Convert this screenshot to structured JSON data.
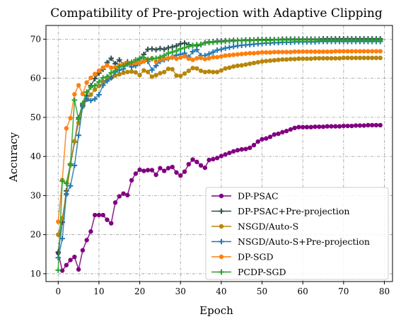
{
  "chart_data": {
    "type": "line",
    "title": "Compatibility of Pre-projection with Adaptive Clipping",
    "xlabel": "Epoch",
    "ylabel": "Accuracy",
    "xlim": [
      -3,
      82
    ],
    "ylim": [
      8,
      73.5
    ],
    "xticks": [
      0,
      10,
      20,
      30,
      40,
      50,
      60,
      70,
      80
    ],
    "yticks": [
      10,
      20,
      30,
      40,
      50,
      60,
      70
    ],
    "grid": true,
    "legend_position": "lower-right",
    "series": [
      {
        "name": "DP-PSAC",
        "color": "#800080",
        "marker": "circle",
        "x": [
          0,
          1,
          2,
          3,
          4,
          5,
          6,
          7,
          8,
          9,
          10,
          11,
          12,
          13,
          14,
          15,
          16,
          17,
          18,
          19,
          20,
          21,
          22,
          23,
          24,
          25,
          26,
          27,
          28,
          29,
          30,
          31,
          32,
          33,
          34,
          35,
          36,
          37,
          38,
          39,
          40,
          41,
          42,
          43,
          44,
          45,
          46,
          47,
          48,
          49,
          50,
          51,
          52,
          53,
          54,
          55,
          56,
          57,
          58,
          59,
          60,
          61,
          62,
          63,
          64,
          65,
          66,
          67,
          68,
          69,
          70,
          71,
          72,
          73,
          74,
          75,
          76,
          77,
          78,
          79
        ],
        "y": [
          15.3,
          10.8,
          12.2,
          13.5,
          14.3,
          11.1,
          16.0,
          18.6,
          20.8,
          25.0,
          25.0,
          25.0,
          23.8,
          22.9,
          28.2,
          29.8,
          30.5,
          30.1,
          33.9,
          35.6,
          36.6,
          36.3,
          36.5,
          36.5,
          35.3,
          37.0,
          36.3,
          37.0,
          37.3,
          35.9,
          35.1,
          36.1,
          38.0,
          39.2,
          38.6,
          37.7,
          37.1,
          39.1,
          39.3,
          39.6,
          40.1,
          40.5,
          40.9,
          41.3,
          41.6,
          41.8,
          41.9,
          42.2,
          42.9,
          43.8,
          44.4,
          44.6,
          45.0,
          45.6,
          45.8,
          46.2,
          46.5,
          46.9,
          47.3,
          47.5,
          47.5,
          47.5,
          47.5,
          47.6,
          47.6,
          47.6,
          47.7,
          47.7,
          47.7,
          47.7,
          47.8,
          47.8,
          47.8,
          47.9,
          47.9,
          47.9,
          48.0,
          48.0,
          48.0,
          48.0
        ]
      },
      {
        "name": "DP-PSAC+Pre-projection",
        "color": "#2f4f4f",
        "marker": "plus",
        "x": [
          0,
          1,
          2,
          3,
          4,
          5,
          6,
          7,
          8,
          9,
          10,
          11,
          12,
          13,
          14,
          15,
          16,
          17,
          18,
          19,
          20,
          21,
          22,
          23,
          24,
          25,
          26,
          27,
          28,
          29,
          30,
          31,
          32,
          33,
          34,
          35,
          36,
          37,
          38,
          39,
          40,
          41,
          42,
          43,
          44,
          45,
          46,
          47,
          48,
          49,
          50,
          51,
          52,
          53,
          54,
          55,
          56,
          57,
          58,
          59,
          60,
          61,
          62,
          63,
          64,
          65,
          66,
          67,
          68,
          69,
          70,
          71,
          72,
          73,
          74,
          75,
          76,
          77,
          78,
          79
        ],
        "y": [
          15.5,
          23.2,
          31.2,
          37.8,
          43.7,
          49.9,
          53.2,
          55.5,
          58.1,
          59.9,
          61.3,
          62.3,
          64.0,
          65.1,
          63.7,
          64.7,
          63.5,
          64.2,
          63.6,
          64.0,
          65.0,
          66.1,
          67.4,
          67.5,
          67.3,
          67.6,
          67.4,
          67.8,
          68.0,
          68.3,
          68.8,
          69.0,
          68.6,
          68.4,
          68.3,
          68.6,
          69.1,
          69.3,
          69.3,
          69.5,
          69.5,
          69.6,
          69.6,
          69.7,
          69.7,
          69.7,
          69.8,
          69.8,
          69.8,
          69.9,
          69.9,
          69.9,
          69.9,
          69.9,
          69.9,
          70.0,
          70.0,
          70.0,
          70.0,
          70.0,
          70.0,
          70.0,
          70.0,
          70.0,
          70.0,
          70.1,
          70.1,
          70.1,
          70.1,
          70.1,
          70.1,
          70.1,
          70.1,
          70.1,
          70.1,
          70.1,
          70.1,
          70.1,
          70.1,
          70.1
        ]
      },
      {
        "name": "NSGD/Auto-S",
        "color": "#b8860b",
        "marker": "circle",
        "x": [
          0,
          1,
          2,
          3,
          4,
          5,
          6,
          7,
          8,
          9,
          10,
          11,
          12,
          13,
          14,
          15,
          16,
          17,
          18,
          19,
          20,
          21,
          22,
          23,
          24,
          25,
          26,
          27,
          28,
          29,
          30,
          31,
          32,
          33,
          34,
          35,
          36,
          37,
          38,
          39,
          40,
          41,
          42,
          43,
          44,
          45,
          46,
          47,
          48,
          49,
          50,
          51,
          52,
          53,
          54,
          55,
          56,
          57,
          58,
          59,
          60,
          61,
          62,
          63,
          64,
          65,
          66,
          67,
          68,
          69,
          70,
          71,
          72,
          73,
          74,
          75,
          76,
          77,
          78,
          79
        ],
        "y": [
          20.0,
          24.2,
          30.3,
          37.9,
          43.9,
          48.6,
          52.7,
          54.5,
          55.8,
          57.1,
          58.0,
          59.1,
          59.6,
          60.1,
          60.7,
          61.0,
          61.4,
          61.6,
          61.7,
          61.5,
          60.8,
          62.0,
          61.6,
          60.4,
          60.8,
          61.3,
          61.6,
          62.4,
          62.3,
          60.7,
          60.6,
          61.2,
          61.9,
          62.6,
          62.5,
          61.9,
          61.6,
          61.7,
          61.6,
          61.6,
          62.0,
          62.5,
          62.7,
          63.0,
          63.2,
          63.3,
          63.5,
          63.7,
          63.9,
          64.1,
          64.3,
          64.4,
          64.5,
          64.6,
          64.7,
          64.8,
          64.8,
          64.9,
          64.9,
          65.0,
          65.0,
          65.0,
          65.0,
          65.1,
          65.1,
          65.1,
          65.1,
          65.1,
          65.1,
          65.1,
          65.2,
          65.2,
          65.2,
          65.2,
          65.2,
          65.2,
          65.2,
          65.2,
          65.2,
          65.2
        ]
      },
      {
        "name": "NSGD/Auto-S+Pre-projection",
        "color": "#1f77b4",
        "marker": "plus",
        "x": [
          0,
          1,
          2,
          3,
          4,
          5,
          6,
          7,
          8,
          9,
          10,
          11,
          12,
          13,
          14,
          15,
          16,
          17,
          18,
          19,
          20,
          21,
          22,
          23,
          24,
          25,
          26,
          27,
          28,
          29,
          30,
          31,
          32,
          33,
          34,
          35,
          36,
          37,
          38,
          39,
          40,
          41,
          42,
          43,
          44,
          45,
          46,
          47,
          48,
          49,
          50,
          51,
          52,
          53,
          54,
          55,
          56,
          57,
          58,
          59,
          60,
          61,
          62,
          63,
          64,
          65,
          66,
          67,
          68,
          69,
          70,
          71,
          72,
          73,
          74,
          75,
          76,
          77,
          78,
          79
        ],
        "y": [
          14.1,
          19.0,
          30.4,
          32.5,
          37.7,
          45.4,
          52.9,
          54.7,
          54.3,
          54.7,
          55.8,
          58.2,
          59.3,
          60.1,
          61.6,
          62.1,
          62.4,
          63.6,
          62.9,
          63.2,
          63.8,
          64.5,
          64.3,
          62.1,
          63.2,
          64.3,
          64.7,
          65.0,
          65.4,
          65.9,
          66.1,
          66.4,
          65.4,
          66.8,
          67.3,
          65.8,
          65.8,
          66.2,
          66.7,
          67.2,
          67.4,
          67.7,
          67.9,
          68.1,
          68.3,
          68.4,
          68.5,
          68.6,
          68.7,
          68.8,
          68.9,
          69.0,
          69.0,
          69.1,
          69.1,
          69.2,
          69.2,
          69.2,
          69.3,
          69.3,
          69.3,
          69.3,
          69.3,
          69.3,
          69.4,
          69.4,
          69.4,
          69.4,
          69.4,
          69.4,
          69.4,
          69.4,
          69.4,
          69.4,
          69.4,
          69.4,
          69.4,
          69.4,
          69.4,
          69.4
        ]
      },
      {
        "name": "DP-SGD",
        "color": "#ff7f0e",
        "marker": "circle",
        "x": [
          0,
          1,
          2,
          3,
          4,
          5,
          6,
          7,
          8,
          9,
          10,
          11,
          12,
          13,
          14,
          15,
          16,
          17,
          18,
          19,
          20,
          21,
          22,
          23,
          24,
          25,
          26,
          27,
          28,
          29,
          30,
          31,
          32,
          33,
          34,
          35,
          36,
          37,
          38,
          39,
          40,
          41,
          42,
          43,
          44,
          45,
          46,
          47,
          48,
          49,
          50,
          51,
          52,
          53,
          54,
          55,
          56,
          57,
          58,
          59,
          60,
          61,
          62,
          63,
          64,
          65,
          66,
          67,
          68,
          69,
          70,
          71,
          72,
          73,
          74,
          75,
          76,
          77,
          78,
          79
        ],
        "y": [
          23.3,
          34.0,
          47.2,
          49.8,
          55.9,
          58.2,
          56.0,
          58.9,
          60.1,
          61.1,
          61.9,
          62.7,
          63.3,
          62.7,
          62.8,
          63.3,
          63.6,
          63.9,
          63.8,
          63.9,
          64.0,
          64.3,
          64.7,
          65.1,
          64.2,
          64.7,
          65.0,
          65.1,
          65.4,
          65.0,
          65.3,
          65.6,
          65.0,
          64.7,
          65.1,
          65.2,
          64.9,
          65.1,
          65.4,
          65.4,
          65.6,
          65.8,
          65.9,
          66.0,
          66.1,
          66.2,
          66.3,
          66.4,
          66.4,
          66.5,
          66.6,
          66.6,
          66.6,
          66.7,
          66.7,
          66.7,
          66.7,
          66.7,
          66.8,
          66.8,
          66.8,
          66.8,
          66.8,
          66.8,
          66.8,
          66.8,
          66.8,
          66.8,
          66.9,
          66.9,
          66.9,
          66.9,
          66.9,
          66.9,
          66.9,
          66.9,
          66.9,
          66.9,
          66.9,
          66.9
        ]
      },
      {
        "name": "PCDP-SGD",
        "color": "#2ca02c",
        "marker": "plus",
        "x": [
          0,
          1,
          2,
          3,
          4,
          5,
          6,
          7,
          8,
          9,
          10,
          11,
          12,
          13,
          14,
          15,
          16,
          17,
          18,
          19,
          20,
          21,
          22,
          23,
          24,
          25,
          26,
          27,
          28,
          29,
          30,
          31,
          32,
          33,
          34,
          35,
          36,
          37,
          38,
          39,
          40,
          41,
          42,
          43,
          44,
          45,
          46,
          47,
          48,
          49,
          50,
          51,
          52,
          53,
          54,
          55,
          56,
          57,
          58,
          59,
          60,
          61,
          62,
          63,
          64,
          65,
          66,
          67,
          68,
          69,
          70,
          71,
          72,
          73,
          74,
          75,
          76,
          77,
          78,
          79
        ],
        "y": [
          10.9,
          33.7,
          33.1,
          38.1,
          54.4,
          49.5,
          53.6,
          56.5,
          57.7,
          58.1,
          59.1,
          60.1,
          60.4,
          61.4,
          61.9,
          62.9,
          63.1,
          63.7,
          64.1,
          64.7,
          65.1,
          65.3,
          64.8,
          65.0,
          65.1,
          65.4,
          65.8,
          66.4,
          66.7,
          67.0,
          67.5,
          67.8,
          68.1,
          68.3,
          68.6,
          68.7,
          69.0,
          69.1,
          69.2,
          69.3,
          69.3,
          69.4,
          69.5,
          69.5,
          69.6,
          69.6,
          69.6,
          69.6,
          69.7,
          69.7,
          69.7,
          69.7,
          69.7,
          69.8,
          69.8,
          69.8,
          69.8,
          69.8,
          69.8,
          69.8,
          69.8,
          69.8,
          69.8,
          69.8,
          69.8,
          69.8,
          69.8,
          69.8,
          69.8,
          69.8,
          69.8,
          69.8,
          69.8,
          69.8,
          69.8,
          69.8,
          69.8,
          69.8,
          69.8,
          69.8
        ]
      }
    ]
  }
}
